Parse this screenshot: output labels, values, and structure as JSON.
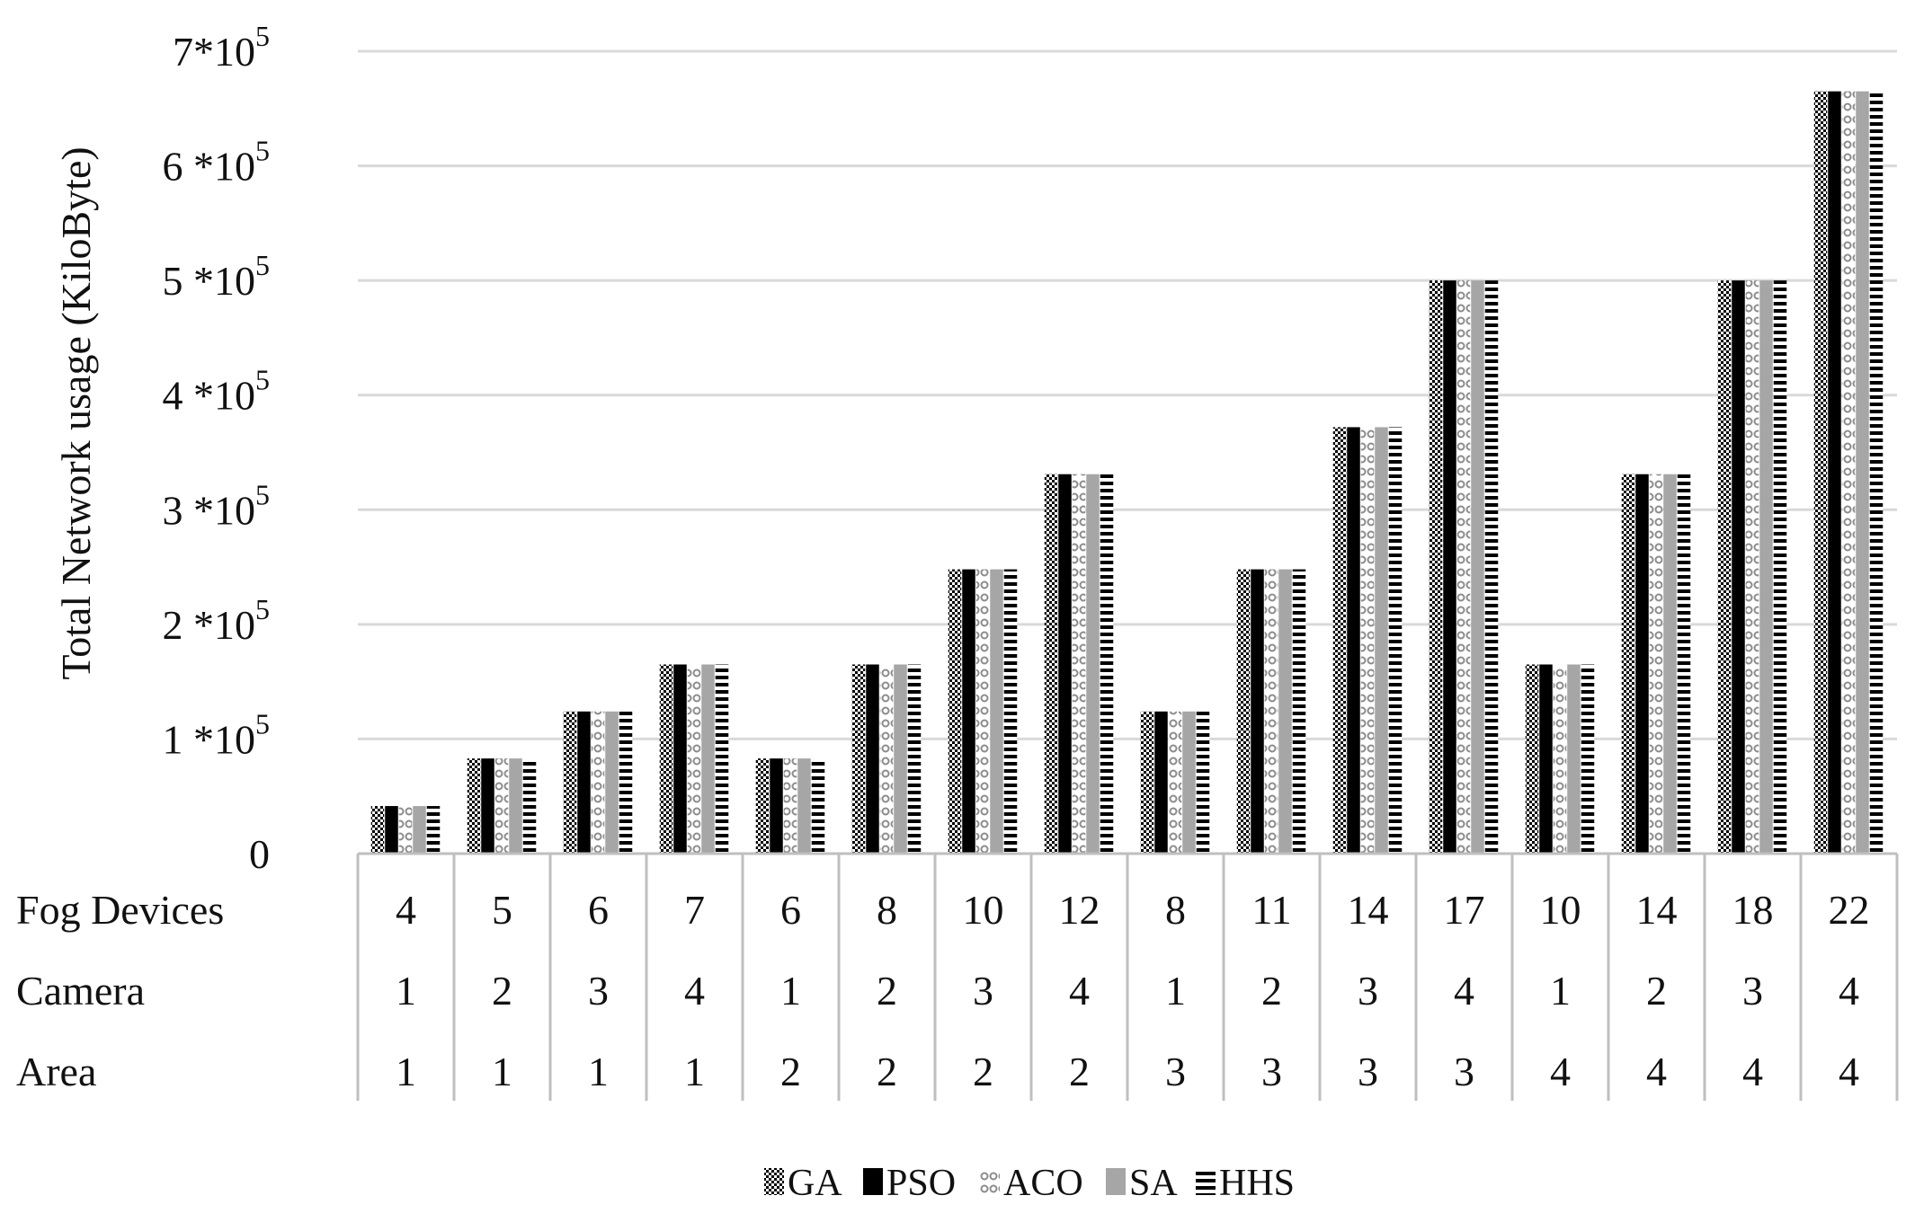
{
  "chart_data": {
    "type": "bar",
    "title": "",
    "ylabel": "Total Network usage (KiloByte)",
    "xlabel": "",
    "ylim": [
      0,
      700000
    ],
    "y_ticks": [
      {
        "value": 0,
        "base": "0",
        "exp": ""
      },
      {
        "value": 100000,
        "base": "1 *10",
        "exp": "5"
      },
      {
        "value": 200000,
        "base": "2 *10",
        "exp": "5"
      },
      {
        "value": 300000,
        "base": "3 *10",
        "exp": "5"
      },
      {
        "value": 400000,
        "base": "4 *10",
        "exp": "5"
      },
      {
        "value": 500000,
        "base": "5 *10",
        "exp": "5"
      },
      {
        "value": 600000,
        "base": "6 *10",
        "exp": "5"
      },
      {
        "value": 700000,
        "base": "7*10",
        "exp": "5"
      }
    ],
    "grid": true,
    "legend_position": "bottom",
    "category_rows": [
      {
        "label": "Fog Devices",
        "values": [
          "4",
          "5",
          "6",
          "7",
          "6",
          "8",
          "10",
          "12",
          "8",
          "11",
          "14",
          "17",
          "10",
          "14",
          "18",
          "22"
        ]
      },
      {
        "label": "Camera",
        "values": [
          "1",
          "2",
          "3",
          "4",
          "1",
          "2",
          "3",
          "4",
          "1",
          "2",
          "3",
          "4",
          "1",
          "2",
          "3",
          "4"
        ]
      },
      {
        "label": "Area",
        "values": [
          "1",
          "1",
          "1",
          "1",
          "2",
          "2",
          "2",
          "2",
          "3",
          "3",
          "3",
          "3",
          "4",
          "4",
          "4",
          "4"
        ]
      }
    ],
    "series": [
      {
        "name": "GA",
        "pattern": "dots",
        "values": [
          41500,
          83000,
          124000,
          165000,
          83000,
          165000,
          248000,
          331000,
          124000,
          248000,
          372000,
          500000,
          165000,
          331000,
          500000,
          665000
        ]
      },
      {
        "name": "PSO",
        "pattern": "solid",
        "values": [
          41500,
          83000,
          124000,
          165000,
          83000,
          165000,
          248000,
          331000,
          124000,
          248000,
          372000,
          500000,
          165000,
          331000,
          500000,
          665000
        ]
      },
      {
        "name": "ACO",
        "pattern": "rings",
        "values": [
          41500,
          83000,
          124000,
          165000,
          83000,
          165000,
          248000,
          331000,
          124000,
          248000,
          372000,
          500000,
          165000,
          331000,
          500000,
          665000
        ]
      },
      {
        "name": "SA",
        "pattern": "gray",
        "values": [
          41500,
          83000,
          124000,
          165000,
          83000,
          165000,
          248000,
          331000,
          124000,
          248000,
          372000,
          500000,
          165000,
          331000,
          500000,
          665000
        ]
      },
      {
        "name": "HHS",
        "pattern": "hlines",
        "values": [
          41500,
          83000,
          124000,
          165000,
          83000,
          165000,
          248000,
          331000,
          124000,
          248000,
          372000,
          500000,
          165000,
          331000,
          500000,
          665000
        ]
      }
    ],
    "colors": {
      "grid": "#d9d9d9",
      "dark": "#000000",
      "gray": "#a6a6a6",
      "table_border": "#bfbfbf"
    }
  }
}
